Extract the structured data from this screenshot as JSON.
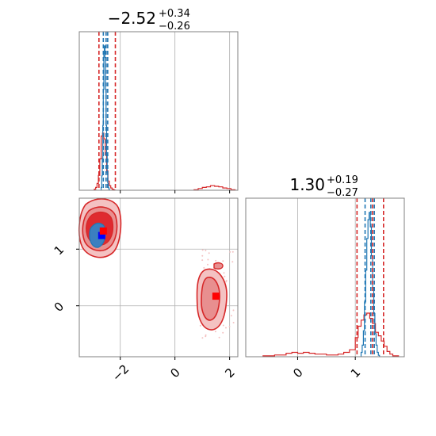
{
  "colors": {
    "red": "#d62728",
    "blue": "#1f77b4",
    "red_fill_light": "#f4c2c2",
    "red_fill_mid": "#e88f8f",
    "red_fill_dark": "#df2a2f",
    "blue_fill": "#3b7fc0",
    "marker_blue": "#0000ff",
    "marker_red": "#ff0000",
    "grid": "#b0b0b0",
    "frame": "#808080"
  },
  "chart_data": [
    {
      "type": "histogram",
      "panel": "top-left",
      "title": {
        "main": "−2.52",
        "sup": "+0.34",
        "sub": "−0.26"
      },
      "xlim": [
        -3.5,
        2.3
      ],
      "grid": true,
      "red_quantile_lines": [
        -2.78,
        -2.52,
        -2.18
      ],
      "blue_quantile_lines": [
        -2.62,
        -2.52,
        -2.46
      ],
      "red_hist": {
        "bin_edges": [
          -2.95,
          -2.9,
          -2.85,
          -2.8,
          -2.75,
          -2.7,
          -2.65,
          -2.6,
          -2.55,
          -2.5,
          -2.45,
          -2.4,
          -2.35,
          -2.3,
          -2.25,
          -2.2
        ],
        "counts": [
          0.02,
          0.05,
          0.12,
          0.26,
          0.55,
          0.95,
          1.0,
          0.9,
          0.62,
          0.34,
          0.16,
          0.08,
          0.04,
          0.02,
          0.01
        ]
      },
      "red_hist_secondary": {
        "bin_edges": [
          0.7,
          0.85,
          1.0,
          1.15,
          1.3,
          1.45,
          1.6,
          1.75,
          1.9,
          2.05,
          2.2
        ],
        "counts": [
          0.01,
          0.03,
          0.05,
          0.06,
          0.08,
          0.07,
          0.06,
          0.04,
          0.03,
          0.01
        ]
      },
      "blue_hist": {
        "bin_edges": [
          -2.7,
          -2.68,
          -2.66,
          -2.64,
          -2.62,
          -2.6,
          -2.58,
          -2.56,
          -2.54,
          -2.52,
          -2.5,
          -2.48,
          -2.46,
          -2.44,
          -2.42,
          -2.4
        ],
        "counts": [
          0.02,
          0.1,
          0.22,
          0.45,
          0.7,
          0.95,
          1.0,
          0.92,
          0.7,
          0.45,
          0.25,
          0.12,
          0.05,
          0.02,
          0.01
        ]
      }
    },
    {
      "type": "contour-scatter",
      "panel": "bottom-left",
      "xlim": [
        -3.5,
        2.3
      ],
      "ylim": [
        -0.9,
        1.9
      ],
      "xticks": [
        "−2",
        "0",
        "2"
      ],
      "yticks": [
        "0",
        "1"
      ],
      "grid": true,
      "markers": [
        {
          "color": "blue",
          "x": -2.68,
          "y": 1.24
        },
        {
          "color": "red",
          "x": -2.62,
          "y": 1.32
        },
        {
          "color": "red",
          "x": 1.5,
          "y": 0.17
        }
      ]
    },
    {
      "type": "histogram",
      "panel": "bottom-right",
      "title": {
        "main": "1.30",
        "sup": "+0.19",
        "sub": "−0.27"
      },
      "xlim": [
        -0.9,
        1.85
      ],
      "xticks": [
        "0",
        "1"
      ],
      "grid": true,
      "red_quantile_lines": [
        1.03,
        1.3,
        1.49
      ],
      "blue_quantile_lines": [
        1.17,
        1.27,
        1.33
      ],
      "red_hist": {
        "bin_edges": [
          -0.6,
          -0.5,
          -0.4,
          -0.3,
          -0.2,
          -0.1,
          0.0,
          0.1,
          0.2,
          0.3,
          0.4,
          0.5,
          0.6,
          0.7,
          0.8,
          0.9,
          1.0,
          1.05,
          1.1,
          1.15,
          1.2,
          1.25,
          1.3,
          1.35,
          1.4,
          1.45,
          1.5,
          1.55,
          1.6,
          1.65,
          1.7,
          1.75
        ],
        "counts": [
          0.01,
          0.01,
          0.02,
          0.02,
          0.04,
          0.05,
          0.04,
          0.05,
          0.04,
          0.03,
          0.03,
          0.02,
          0.02,
          0.03,
          0.05,
          0.08,
          0.22,
          0.35,
          0.42,
          0.48,
          0.5,
          0.44,
          0.38,
          0.28,
          0.24,
          0.18,
          0.12,
          0.06,
          0.03,
          0.01,
          0.01
        ]
      },
      "blue_hist": {
        "bin_edges": [
          1.1,
          1.12,
          1.14,
          1.16,
          1.18,
          1.2,
          1.22,
          1.24,
          1.26,
          1.28,
          1.3,
          1.32,
          1.34,
          1.36,
          1.38,
          1.4,
          1.42
        ],
        "counts": [
          0.03,
          0.08,
          0.18,
          0.38,
          0.6,
          0.82,
          0.95,
          1.0,
          0.9,
          0.7,
          0.48,
          0.3,
          0.16,
          0.08,
          0.03,
          0.01
        ]
      }
    }
  ]
}
